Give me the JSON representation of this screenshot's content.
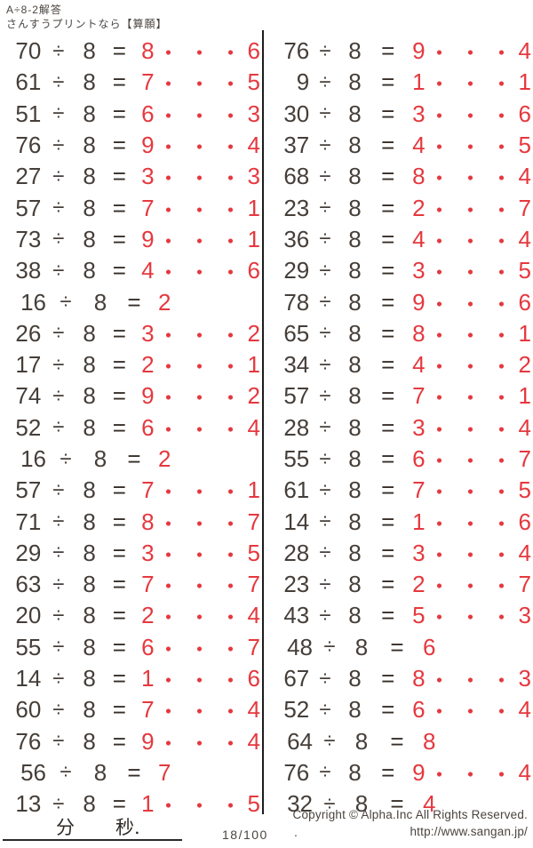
{
  "header": {
    "title": "A÷8-2解答",
    "subtitle": "さんすうプリントなら【算願】"
  },
  "colors": {
    "answer_red": "#e5383e",
    "ink": "#453e39"
  },
  "operators": {
    "divide": "÷",
    "equals": "="
  },
  "answer_separator": "・・・",
  "problems": {
    "divisor": "8",
    "left": [
      {
        "dividend": "70",
        "quotient": "8",
        "remainder": "6"
      },
      {
        "dividend": "61",
        "quotient": "7",
        "remainder": "5"
      },
      {
        "dividend": "51",
        "quotient": "6",
        "remainder": "3"
      },
      {
        "dividend": "76",
        "quotient": "9",
        "remainder": "4"
      },
      {
        "dividend": "27",
        "quotient": "3",
        "remainder": "3"
      },
      {
        "dividend": "57",
        "quotient": "7",
        "remainder": "1"
      },
      {
        "dividend": "73",
        "quotient": "9",
        "remainder": "1"
      },
      {
        "dividend": "38",
        "quotient": "4",
        "remainder": "6"
      },
      {
        "dividend": "16",
        "quotient": "2",
        "remainder": null
      },
      {
        "dividend": "26",
        "quotient": "3",
        "remainder": "2"
      },
      {
        "dividend": "17",
        "quotient": "2",
        "remainder": "1"
      },
      {
        "dividend": "74",
        "quotient": "9",
        "remainder": "2"
      },
      {
        "dividend": "52",
        "quotient": "6",
        "remainder": "4"
      },
      {
        "dividend": "16",
        "quotient": "2",
        "remainder": null
      },
      {
        "dividend": "57",
        "quotient": "7",
        "remainder": "1"
      },
      {
        "dividend": "71",
        "quotient": "8",
        "remainder": "7"
      },
      {
        "dividend": "29",
        "quotient": "3",
        "remainder": "5"
      },
      {
        "dividend": "63",
        "quotient": "7",
        "remainder": "7"
      },
      {
        "dividend": "20",
        "quotient": "2",
        "remainder": "4"
      },
      {
        "dividend": "55",
        "quotient": "6",
        "remainder": "7"
      },
      {
        "dividend": "14",
        "quotient": "1",
        "remainder": "6"
      },
      {
        "dividend": "60",
        "quotient": "7",
        "remainder": "4"
      },
      {
        "dividend": "76",
        "quotient": "9",
        "remainder": "4"
      },
      {
        "dividend": "56",
        "quotient": "7",
        "remainder": null
      },
      {
        "dividend": "13",
        "quotient": "1",
        "remainder": "5"
      }
    ],
    "right": [
      {
        "dividend": "76",
        "quotient": "9",
        "remainder": "4"
      },
      {
        "dividend": "9",
        "quotient": "1",
        "remainder": "1"
      },
      {
        "dividend": "30",
        "quotient": "3",
        "remainder": "6"
      },
      {
        "dividend": "37",
        "quotient": "4",
        "remainder": "5"
      },
      {
        "dividend": "68",
        "quotient": "8",
        "remainder": "4"
      },
      {
        "dividend": "23",
        "quotient": "2",
        "remainder": "7"
      },
      {
        "dividend": "36",
        "quotient": "4",
        "remainder": "4"
      },
      {
        "dividend": "29",
        "quotient": "3",
        "remainder": "5"
      },
      {
        "dividend": "78",
        "quotient": "9",
        "remainder": "6"
      },
      {
        "dividend": "65",
        "quotient": "8",
        "remainder": "1"
      },
      {
        "dividend": "34",
        "quotient": "4",
        "remainder": "2"
      },
      {
        "dividend": "57",
        "quotient": "7",
        "remainder": "1"
      },
      {
        "dividend": "28",
        "quotient": "3",
        "remainder": "4"
      },
      {
        "dividend": "55",
        "quotient": "6",
        "remainder": "7"
      },
      {
        "dividend": "61",
        "quotient": "7",
        "remainder": "5"
      },
      {
        "dividend": "14",
        "quotient": "1",
        "remainder": "6"
      },
      {
        "dividend": "28",
        "quotient": "3",
        "remainder": "4"
      },
      {
        "dividend": "23",
        "quotient": "2",
        "remainder": "7"
      },
      {
        "dividend": "43",
        "quotient": "5",
        "remainder": "3"
      },
      {
        "dividend": "48",
        "quotient": "6",
        "remainder": null
      },
      {
        "dividend": "67",
        "quotient": "8",
        "remainder": "3"
      },
      {
        "dividend": "52",
        "quotient": "6",
        "remainder": "4"
      },
      {
        "dividend": "64",
        "quotient": "8",
        "remainder": null
      },
      {
        "dividend": "76",
        "quotient": "9",
        "remainder": "4"
      },
      {
        "dividend": "32",
        "quotient": "4",
        "remainder": null
      }
    ]
  },
  "footer": {
    "minutes_label": "分",
    "seconds_label": "秒.",
    "page_number": "18/100",
    "stray_dot": ".",
    "copyright": "Copyright ©  Alpha.Inc All Rights Reserved.",
    "url": "http://www.sangan.jp/"
  }
}
